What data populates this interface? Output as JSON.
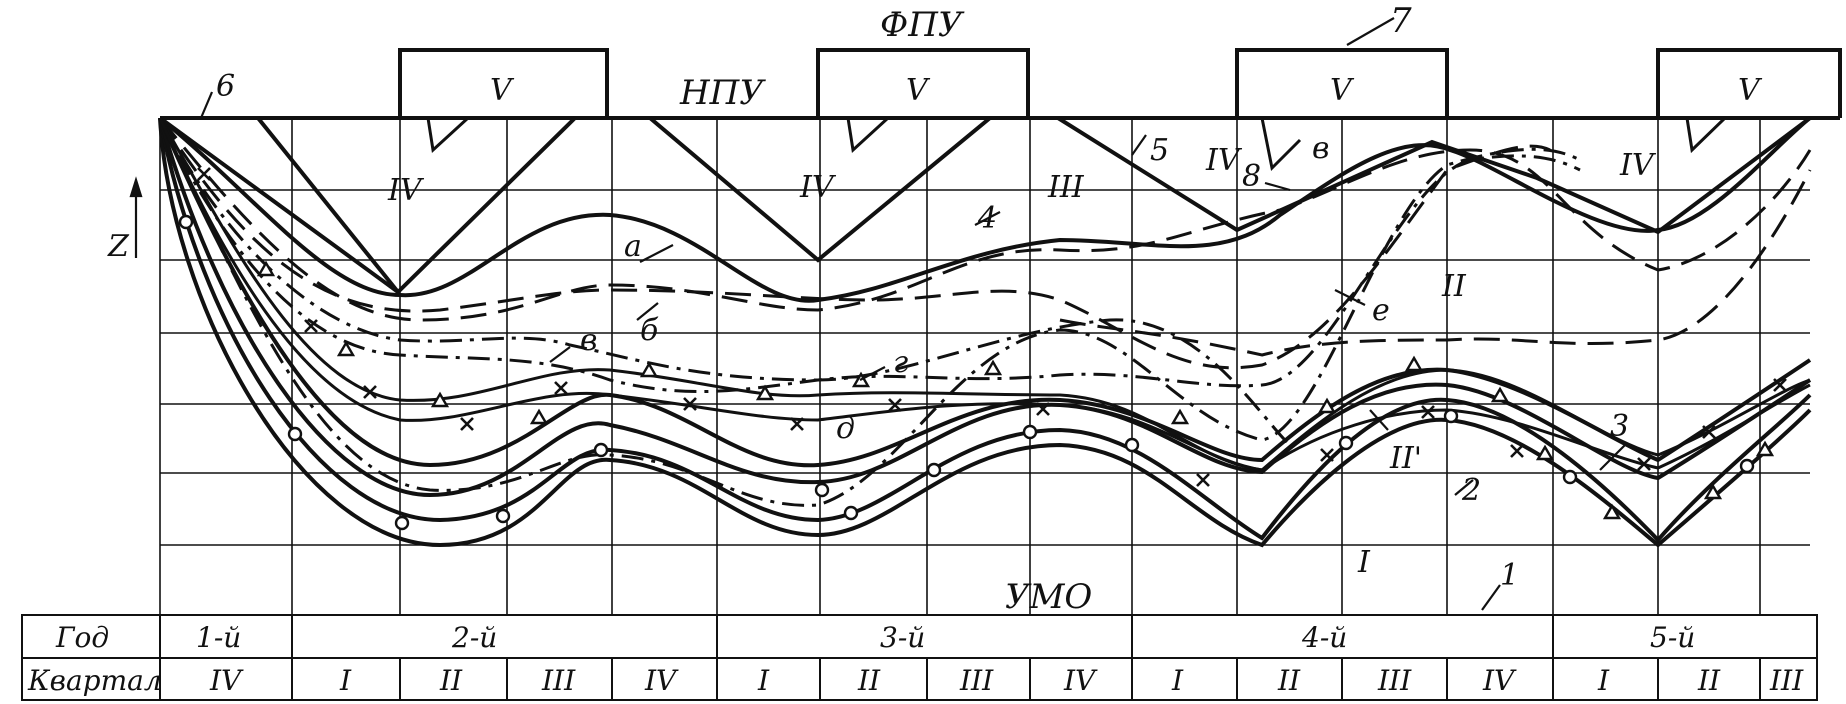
{
  "colors": {
    "ink": "#111111",
    "paper": "#ffffff"
  },
  "labels": {
    "fpu": "ФПУ",
    "npu": "НПУ",
    "umo": "УМО",
    "z_axis": "Z",
    "n1": "1",
    "n2": "2",
    "n3": "3",
    "n4": "4",
    "n5": "5",
    "n6": "6",
    "n7": "7",
    "n8": "8",
    "a": "а",
    "b": "б",
    "v": "в",
    "g": "г",
    "d": "д",
    "e": "е",
    "II_prime": "II'"
  },
  "zones": {
    "V": "V",
    "IV": "IV",
    "III": "III",
    "II": "II",
    "I": "I"
  },
  "table": {
    "year_header": "Год",
    "quarter_header": "Квартал",
    "years": [
      "1-й",
      "2-й",
      "3-й",
      "4-й",
      "5-й"
    ],
    "quarters": [
      "IV",
      "I",
      "II",
      "III",
      "IV",
      "I",
      "II",
      "III",
      "IV",
      "I",
      "II",
      "III",
      "IV",
      "I",
      "II",
      "III"
    ]
  }
}
